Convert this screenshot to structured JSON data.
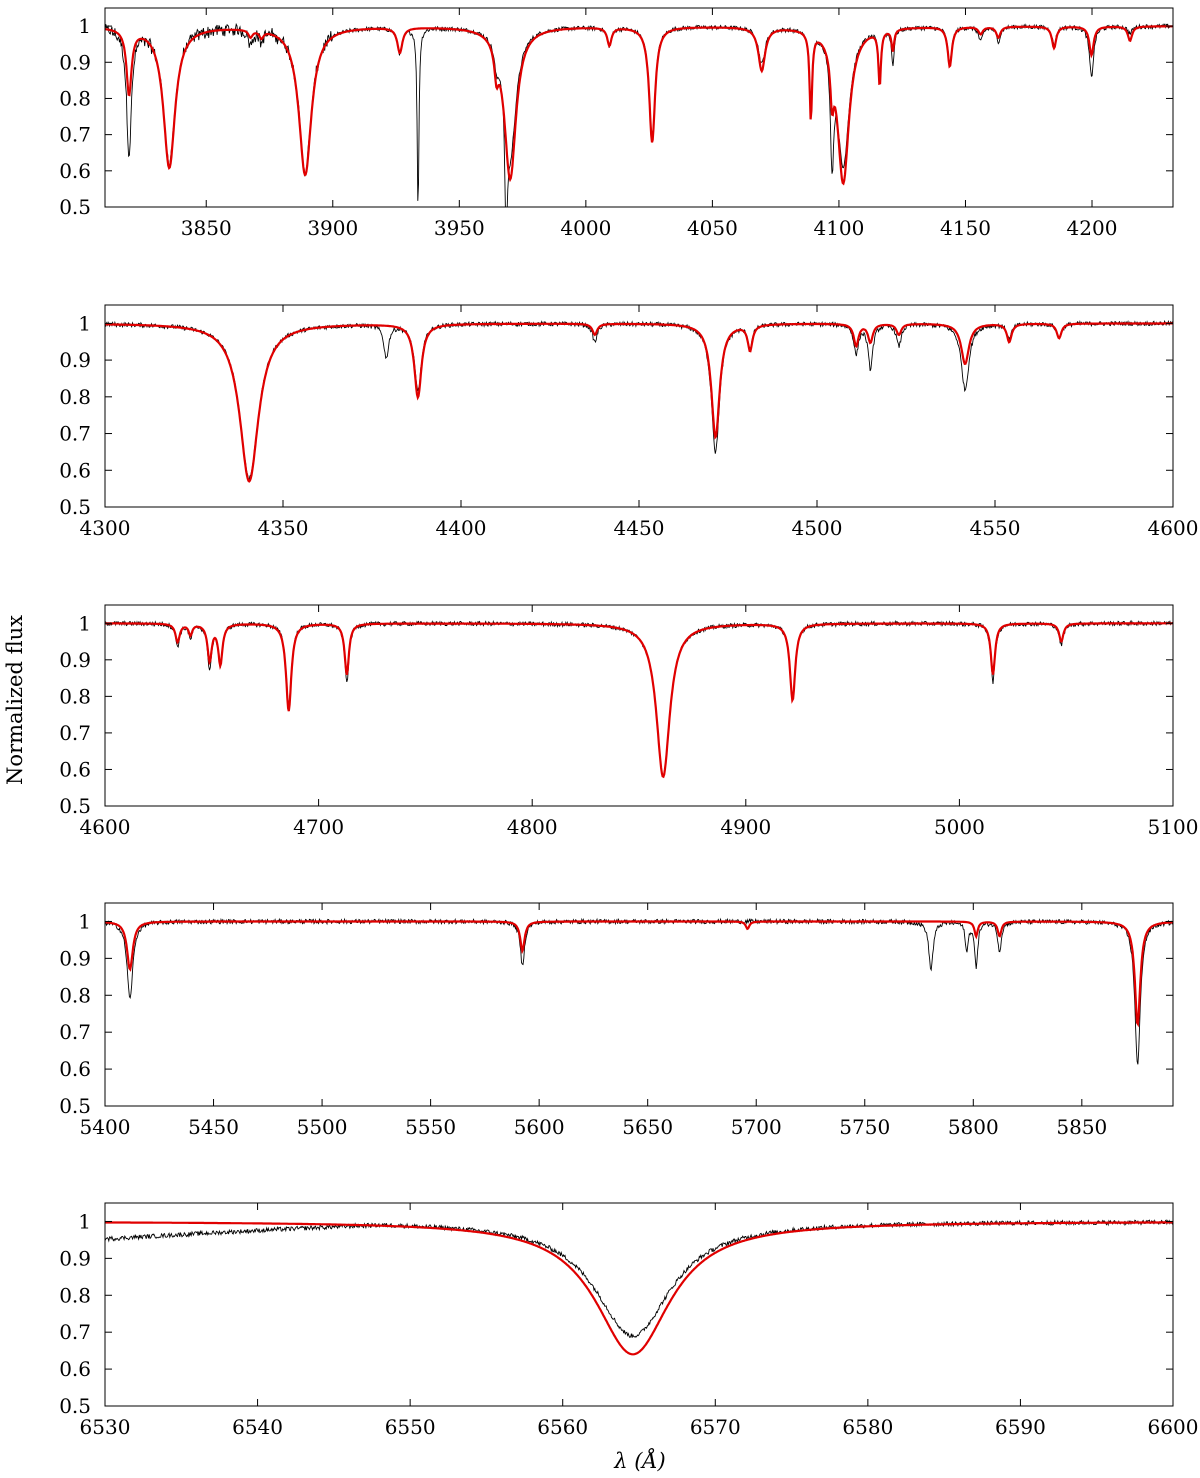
{
  "figure": {
    "ylabel": "Normalized flux",
    "xlabel": "λ (Å)",
    "colors": {
      "observed": "#000000",
      "model": "#e00000",
      "axes": "#000000"
    }
  },
  "chart_data": [
    {
      "type": "line",
      "xlim": [
        3810,
        4232
      ],
      "ylim": [
        0.5,
        1.05
      ],
      "xticks": [
        3850,
        3900,
        3950,
        4000,
        4050,
        4100,
        4150,
        4200
      ],
      "yticks": [
        0.5,
        0.6,
        0.7,
        0.8,
        0.9,
        1
      ],
      "grid": false,
      "series": [
        {
          "role": "observed spectrum",
          "color": "#000000"
        },
        {
          "role": "model spectrum",
          "color": "#e00000"
        }
      ],
      "lines": [
        {
          "c": 3819.5,
          "m": 0.18,
          "w": 1.2,
          "o": 0.34
        },
        {
          "c": 3835.4,
          "m": 0.39,
          "w": 2.8,
          "o": 0.38
        },
        {
          "c": 3867.5,
          "m": 0.02,
          "w": 1.0,
          "o": 0.04
        },
        {
          "c": 3871.8,
          "m": 0.02,
          "w": 1.0,
          "o": 0.03
        },
        {
          "c": 3889.1,
          "m": 0.41,
          "w": 3.0,
          "o": 0.4
        },
        {
          "c": 3926.5,
          "m": 0.07,
          "w": 1.2,
          "o": 0.07
        },
        {
          "c": 3933.7,
          "m": 0.0,
          "w": 0.4,
          "o": 0.52
        },
        {
          "c": 3964.7,
          "m": 0.08,
          "w": 1.0,
          "o": 0.06
        },
        {
          "c": 3968.5,
          "m": 0.0,
          "w": 0.4,
          "o": 0.5
        },
        {
          "c": 3970.1,
          "m": 0.42,
          "w": 2.8,
          "o": 0.35
        },
        {
          "c": 4009.3,
          "m": 0.05,
          "w": 1.0,
          "o": 0.05
        },
        {
          "c": 4026.2,
          "m": 0.32,
          "w": 1.4,
          "o": 0.3
        },
        {
          "c": 4069.5,
          "m": 0.12,
          "w": 1.6,
          "o": 0.1
        },
        {
          "c": 4088.9,
          "m": 0.24,
          "w": 0.6,
          "o": 0.23
        },
        {
          "c": 4097.3,
          "m": 0.12,
          "w": 0.8,
          "o": 0.3
        },
        {
          "c": 4101.7,
          "m": 0.43,
          "w": 2.8,
          "o": 0.38
        },
        {
          "c": 4116.1,
          "m": 0.15,
          "w": 0.6,
          "o": 0.15
        },
        {
          "c": 4121.3,
          "m": 0.06,
          "w": 0.6,
          "o": 0.1
        },
        {
          "c": 4143.8,
          "m": 0.11,
          "w": 1.0,
          "o": 0.1
        },
        {
          "c": 4156.0,
          "m": 0.02,
          "w": 1.0,
          "o": 0.04
        },
        {
          "c": 4163.0,
          "m": 0.03,
          "w": 1.0,
          "o": 0.04
        },
        {
          "c": 4185.0,
          "m": 0.06,
          "w": 1.0,
          "o": 0.05
        },
        {
          "c": 4199.8,
          "m": 0.08,
          "w": 1.0,
          "o": 0.14
        },
        {
          "c": 4215.0,
          "m": 0.04,
          "w": 1.0,
          "o": 0.02
        }
      ]
    },
    {
      "type": "line",
      "xlim": [
        4300,
        4600
      ],
      "ylim": [
        0.5,
        1.05
      ],
      "xticks": [
        4300,
        4350,
        4400,
        4450,
        4500,
        4550,
        4600
      ],
      "yticks": [
        0.5,
        0.6,
        0.7,
        0.8,
        0.9,
        1
      ],
      "grid": false,
      "series": [
        {
          "role": "observed spectrum",
          "color": "#000000"
        },
        {
          "role": "model spectrum",
          "color": "#e00000"
        }
      ],
      "lines": [
        {
          "c": 4340.5,
          "m": 0.43,
          "w": 3.2,
          "o": 0.42
        },
        {
          "c": 4379.0,
          "m": 0.0,
          "w": 0.8,
          "o": 0.09
        },
        {
          "c": 4387.9,
          "m": 0.2,
          "w": 1.2,
          "o": 0.18
        },
        {
          "c": 4437.6,
          "m": 0.03,
          "w": 0.8,
          "o": 0.05
        },
        {
          "c": 4471.5,
          "m": 0.31,
          "w": 1.4,
          "o": 0.35
        },
        {
          "c": 4481.2,
          "m": 0.07,
          "w": 0.8,
          "o": 0.06
        },
        {
          "c": 4511.0,
          "m": 0.06,
          "w": 0.8,
          "o": 0.08
        },
        {
          "c": 4515.0,
          "m": 0.05,
          "w": 0.8,
          "o": 0.12
        },
        {
          "c": 4523.0,
          "m": 0.03,
          "w": 0.8,
          "o": 0.06
        },
        {
          "c": 4541.6,
          "m": 0.11,
          "w": 1.3,
          "o": 0.18
        },
        {
          "c": 4554.0,
          "m": 0.05,
          "w": 0.8,
          "o": 0.04
        },
        {
          "c": 4568.0,
          "m": 0.04,
          "w": 0.8,
          "o": 0.04
        }
      ]
    },
    {
      "type": "line",
      "xlim": [
        4600,
        5100
      ],
      "ylim": [
        0.5,
        1.05
      ],
      "xticks": [
        4600,
        4700,
        4800,
        4900,
        5000,
        5100
      ],
      "yticks": [
        0.5,
        0.6,
        0.7,
        0.8,
        0.9,
        1
      ],
      "grid": false,
      "series": [
        {
          "role": "observed spectrum",
          "color": "#000000"
        },
        {
          "role": "model spectrum",
          "color": "#e00000"
        }
      ],
      "lines": [
        {
          "c": 4634.0,
          "m": 0.05,
          "w": 1.2,
          "o": 0.06
        },
        {
          "c": 4640.0,
          "m": 0.03,
          "w": 1.0,
          "o": 0.04
        },
        {
          "c": 4649.0,
          "m": 0.1,
          "w": 1.2,
          "o": 0.12
        },
        {
          "c": 4654.0,
          "m": 0.11,
          "w": 1.2,
          "o": 0.11
        },
        {
          "c": 4686.0,
          "m": 0.24,
          "w": 1.5,
          "o": 0.22
        },
        {
          "c": 4713.2,
          "m": 0.14,
          "w": 1.2,
          "o": 0.16
        },
        {
          "c": 4861.3,
          "m": 0.42,
          "w": 3.8,
          "o": 0.42
        },
        {
          "c": 4921.9,
          "m": 0.21,
          "w": 1.5,
          "o": 0.21
        },
        {
          "c": 5015.7,
          "m": 0.14,
          "w": 1.2,
          "o": 0.16
        },
        {
          "c": 5047.7,
          "m": 0.05,
          "w": 1.2,
          "o": 0.06
        }
      ]
    },
    {
      "type": "line",
      "xlim": [
        5400,
        5892
      ],
      "ylim": [
        0.5,
        1.05
      ],
      "xticks": [
        5400,
        5450,
        5500,
        5550,
        5600,
        5650,
        5700,
        5750,
        5800,
        5850
      ],
      "yticks": [
        0.5,
        0.6,
        0.7,
        0.8,
        0.9,
        1
      ],
      "grid": false,
      "series": [
        {
          "role": "observed spectrum",
          "color": "#000000"
        },
        {
          "role": "model spectrum",
          "color": "#e00000"
        }
      ],
      "lines": [
        {
          "c": 5411.5,
          "m": 0.13,
          "w": 1.6,
          "o": 0.21
        },
        {
          "c": 5592.3,
          "m": 0.08,
          "w": 1.2,
          "o": 0.12
        },
        {
          "c": 5696.0,
          "m": 0.02,
          "w": 1.0,
          "o": 0.0
        },
        {
          "c": 5780.5,
          "m": 0.0,
          "w": 1.2,
          "o": 0.13
        },
        {
          "c": 5797.0,
          "m": 0.0,
          "w": 0.8,
          "o": 0.08
        },
        {
          "c": 5801.3,
          "m": 0.04,
          "w": 0.9,
          "o": 0.12
        },
        {
          "c": 5812.1,
          "m": 0.04,
          "w": 1.0,
          "o": 0.08
        },
        {
          "c": 5875.7,
          "m": 0.28,
          "w": 1.5,
          "o": 0.39
        }
      ]
    },
    {
      "type": "line",
      "xlim": [
        6530,
        6600
      ],
      "ylim": [
        0.5,
        1.05
      ],
      "xticks": [
        6530,
        6540,
        6550,
        6560,
        6570,
        6580,
        6590,
        6600
      ],
      "yticks": [
        0.5,
        0.6,
        0.7,
        0.8,
        0.9,
        1
      ],
      "grid": false,
      "series": [
        {
          "role": "observed spectrum",
          "color": "#000000"
        },
        {
          "role": "model spectrum",
          "color": "#e00000"
        }
      ],
      "lines": [
        {
          "c": 6564.6,
          "m": 0.36,
          "w": 3.0,
          "o": 0.31
        }
      ]
    }
  ]
}
